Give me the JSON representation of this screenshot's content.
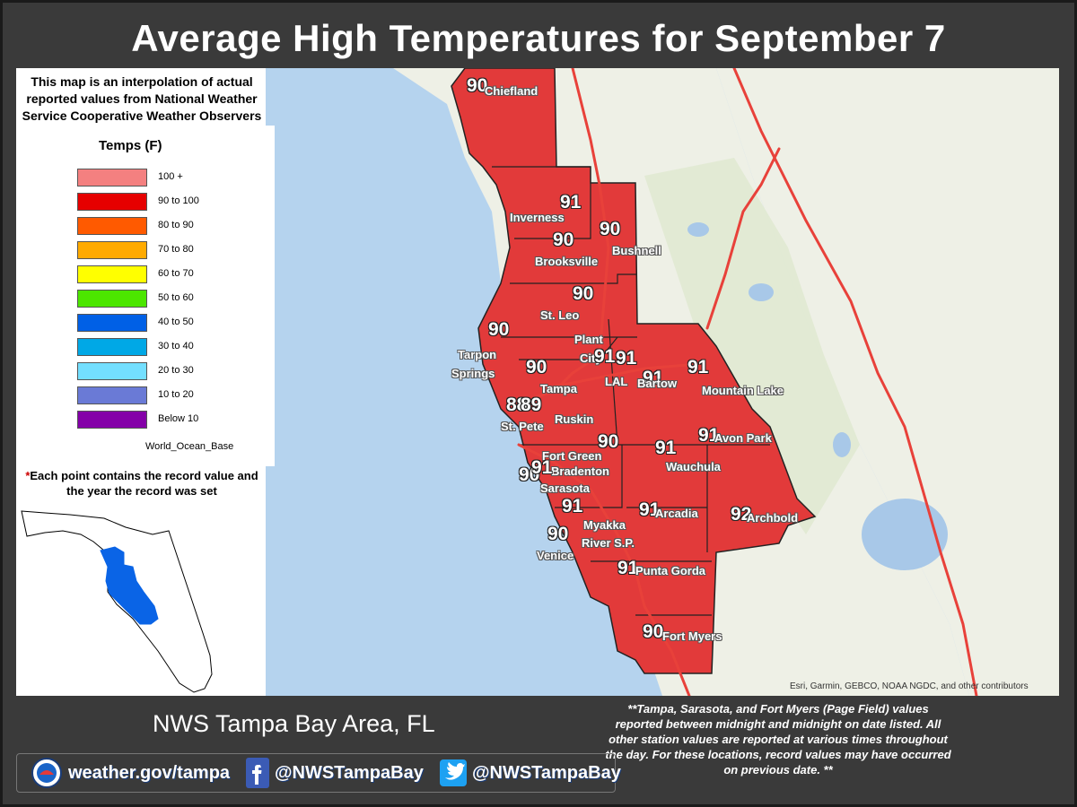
{
  "title": "Average High Temperatures for September 7",
  "intro": "This map is an interpolation of actual reported values from National Weather Service Cooperative Weather Observers",
  "legend": {
    "title": "Temps (F)",
    "items": [
      {
        "label": "100 +",
        "color": "#f48080"
      },
      {
        "label": "90 to 100",
        "color": "#e60000"
      },
      {
        "label": "80 to 90",
        "color": "#ff5a00"
      },
      {
        "label": "70 to 80",
        "color": "#ffaa00"
      },
      {
        "label": "60 to 70",
        "color": "#ffff00"
      },
      {
        "label": "50 to 60",
        "color": "#4ce600"
      },
      {
        "label": "40 to 50",
        "color": "#0060e6"
      },
      {
        "label": "30 to 40",
        "color": "#00a8e6"
      },
      {
        "label": "20 to 30",
        "color": "#73dfff"
      },
      {
        "label": "10 to 20",
        "color": "#6a7ad6"
      },
      {
        "label": "Below 10",
        "color": "#8400a8"
      }
    ],
    "basemap": "World_Ocean_Base"
  },
  "note_points": {
    "star": "*",
    "text": "Each point contains the record value and the year the record was set"
  },
  "stations": [
    {
      "name": "Chiefland",
      "value": "90"
    },
    {
      "name": "Inverness",
      "value": "91"
    },
    {
      "name": "Bushnell",
      "value": "90"
    },
    {
      "name": "Brooksville",
      "value": "90"
    },
    {
      "name": "St. Leo",
      "value": "90"
    },
    {
      "name": "Tarpon Springs",
      "value": "90"
    },
    {
      "name": "Plant City",
      "value": "91"
    },
    {
      "name": "LAL",
      "value": "91"
    },
    {
      "name": "Bartow",
      "value": "91"
    },
    {
      "name": "Mountain Lake",
      "value": "91"
    },
    {
      "name": "Tampa",
      "value": "90"
    },
    {
      "name": "St. Pete",
      "value": "88"
    },
    {
      "name": "St. Pete 2",
      "value": "89"
    },
    {
      "name": "Ruskin",
      "value": "90"
    },
    {
      "name": "Avon Park",
      "value": "91"
    },
    {
      "name": "Wauchula",
      "value": "91"
    },
    {
      "name": "Fort Green",
      "value": "90"
    },
    {
      "name": "Bradenton",
      "value": "91"
    },
    {
      "name": "Sarasota",
      "value": "90"
    },
    {
      "name": "Myakka River S.P.",
      "value": "91"
    },
    {
      "name": "Arcadia",
      "value": "91"
    },
    {
      "name": "Archbold",
      "value": "92"
    },
    {
      "name": "Venice",
      "value": "90"
    },
    {
      "name": "Punta Gorda",
      "value": "91"
    },
    {
      "name": "Fort Myers",
      "value": "90"
    }
  ],
  "city_labels": {
    "chiefland": "Chiefland",
    "inverness": "Inverness",
    "bushnell": "Bushnell",
    "brooksville": "Brooksville",
    "st_leo": "St. Leo",
    "tarpon1": "Tarpon",
    "tarpon2": "Springs",
    "plant": "Plant",
    "city": "City",
    "lal": "LAL",
    "bartow": "Bartow",
    "mountain_lake": "Mountain Lake",
    "tampa": "Tampa",
    "ruskin": "Ruskin",
    "st_pete": "St. Pete",
    "avon_park": "Avon Park",
    "fort_green": "Fort Green",
    "bradenton": "Bradenton",
    "wauchula": "Wauchula",
    "sarasota": "Sarasota",
    "myakka1": "Myakka",
    "myakka2": "River S.P.",
    "arcadia": "Arcadia",
    "archbold": "Archbold",
    "venice": "Venice",
    "punta_gorda": "Punta Gorda",
    "fort_myers": "Fort Myers"
  },
  "attribution": "Esri, Garmin, GEBCO, NOAA NGDC, and other contributors",
  "office": "NWS Tampa Bay Area, FL",
  "footnote": "**Tampa, Sarasota, and Fort Myers (Page Field) values reported between midnight and midnight on date listed. All other station values are reported at various times throughout the day. For these locations,  record values may have occurred on previous date. **",
  "social": {
    "website": "weather.gov/tampa",
    "facebook": "@NWSTampaBay",
    "twitter": "@NWSTampaBay"
  },
  "colors": {
    "region_fill": "#e23a3a",
    "interstate": "#e8413a",
    "water": "#b5d3ee",
    "land": "#eef0e6",
    "inset_fill": "#0a64e6"
  }
}
